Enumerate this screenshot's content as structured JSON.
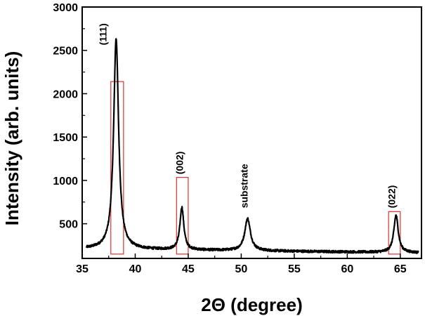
{
  "chart_data": {
    "type": "line",
    "xlabel": "2Θ (degree)",
    "ylabel": "Intensity (arb. units)",
    "xlim": [
      35,
      67
    ],
    "ylim": [
      100,
      3000
    ],
    "x_ticks": [
      35,
      40,
      45,
      50,
      55,
      60,
      65
    ],
    "y_ticks": [
      500,
      1000,
      1500,
      2000,
      2500,
      3000
    ],
    "grid": false,
    "legend": "none",
    "series": [
      {
        "color": "#000000",
        "baseline": 210,
        "peaks": [
          {
            "x": 38.2,
            "height": 2640
          },
          {
            "x": 44.4,
            "height": 700
          },
          {
            "x": 50.6,
            "height": 580
          },
          {
            "x": 64.6,
            "height": 640
          }
        ]
      }
    ],
    "annotations": [
      {
        "text": "(111)",
        "x": 37.3,
        "y": 2560,
        "rotate": -90
      },
      {
        "text": "(002)",
        "x": 44.5,
        "y": 1070,
        "rotate": -90
      },
      {
        "text": "substrate",
        "x": 50.6,
        "y": 680,
        "rotate": -90
      },
      {
        "text": "(022)",
        "x": 64.5,
        "y": 680,
        "rotate": -90
      }
    ],
    "boxes": [
      {
        "x0": 37.7,
        "x1": 38.9,
        "y0": 150,
        "y1": 2140
      },
      {
        "x0": 43.9,
        "x1": 45.0,
        "y0": 150,
        "y1": 1035
      },
      {
        "x0": 63.9,
        "x1": 65.0,
        "y0": 150,
        "y1": 640
      }
    ],
    "box_color": "#e03030"
  }
}
